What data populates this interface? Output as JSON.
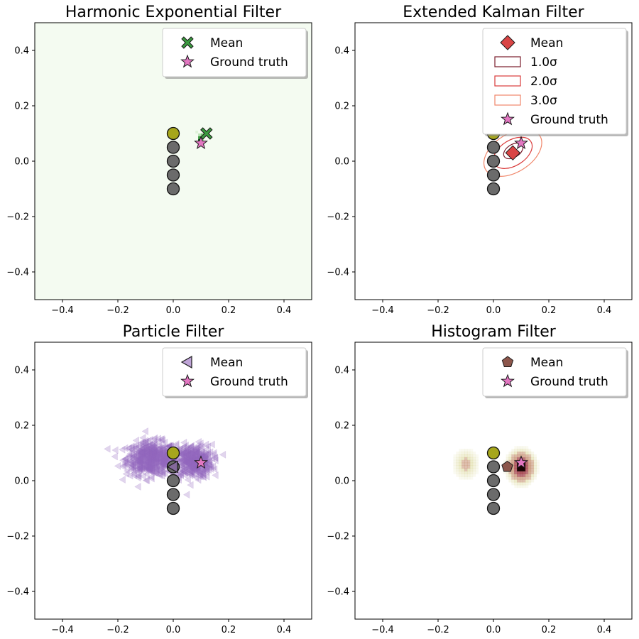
{
  "chart_data": [
    {
      "type": "scatter",
      "title": "Harmonic Exponential Filter",
      "xlim": [
        -0.5,
        0.5
      ],
      "ylim": [
        -0.5,
        0.5
      ],
      "xticks": [
        "−0.4",
        "−0.2",
        "0.0",
        "0.2",
        "0.4"
      ],
      "yticks": [
        "−0.4",
        "−0.2",
        "0.0",
        "0.2",
        "0.4"
      ],
      "background_density": "heatmap (greens)",
      "landmarks": {
        "x": [
          0,
          0,
          0,
          0,
          0
        ],
        "y": [
          0.1,
          0.05,
          0.0,
          -0.05,
          -0.1
        ],
        "highlighted": [
          true,
          false,
          false,
          false,
          false
        ]
      },
      "mean": {
        "x": 0.12,
        "y": 0.1
      },
      "ground_truth": {
        "x": 0.1,
        "y": 0.065
      },
      "legend": {
        "position": "upper right",
        "entries": [
          "Mean",
          "Ground truth"
        ]
      },
      "accent_color": "#3a9a3f"
    },
    {
      "type": "scatter",
      "title": "Extended Kalman Filter",
      "xlim": [
        -0.5,
        0.5
      ],
      "ylim": [
        -0.5,
        0.5
      ],
      "xticks": [
        "−0.4",
        "−0.2",
        "0.0",
        "0.2",
        "0.4"
      ],
      "yticks": [
        "−0.4",
        "−0.2",
        "0.0",
        "0.2",
        "0.4"
      ],
      "landmarks": {
        "x": [
          0,
          0,
          0,
          0,
          0
        ],
        "y": [
          0.1,
          0.05,
          0.0,
          -0.05,
          -0.1
        ],
        "highlighted": [
          true,
          false,
          false,
          false,
          false
        ]
      },
      "mean": {
        "x": 0.07,
        "y": 0.03
      },
      "ground_truth": {
        "x": 0.1,
        "y": 0.065
      },
      "ellipses": [
        {
          "sigma": 1.0,
          "label": "1.0σ",
          "color": "#7a1d2c"
        },
        {
          "sigma": 2.0,
          "label": "2.0σ",
          "color": "#d93b3b"
        },
        {
          "sigma": 3.0,
          "label": "3.0σ",
          "color": "#f0866a"
        }
      ],
      "legend": {
        "position": "upper right",
        "entries": [
          "Mean",
          "1.0σ",
          "2.0σ",
          "3.0σ",
          "Ground truth"
        ]
      },
      "accent_color": "#d94545"
    },
    {
      "type": "scatter",
      "title": "Particle Filter",
      "xlim": [
        -0.5,
        0.5
      ],
      "ylim": [
        -0.5,
        0.5
      ],
      "xticks": [
        "−0.4",
        "−0.2",
        "0.0",
        "0.2",
        "0.4"
      ],
      "yticks": [
        "−0.4",
        "−0.2",
        "0.0",
        "0.2",
        "0.4"
      ],
      "particles": "cloud centered near (0, 0.07), x range ≈ −0.2 to 0.17, y range ≈ −0.03 to 0.18",
      "landmarks": {
        "x": [
          0,
          0,
          0,
          0,
          0
        ],
        "y": [
          0.1,
          0.05,
          0.0,
          -0.05,
          -0.1
        ],
        "highlighted": [
          true,
          false,
          false,
          false,
          false
        ]
      },
      "mean": {
        "x": 0.0,
        "y": 0.05
      },
      "ground_truth": {
        "x": 0.1,
        "y": 0.065
      },
      "legend": {
        "position": "upper right",
        "entries": [
          "Mean",
          "Ground truth"
        ]
      },
      "accent_color": "#9467bd"
    },
    {
      "type": "scatter",
      "title": "Histogram Filter",
      "xlim": [
        -0.5,
        0.5
      ],
      "ylim": [
        -0.5,
        0.5
      ],
      "xticks": [
        "−0.4",
        "−0.2",
        "0.0",
        "0.2",
        "0.4"
      ],
      "yticks": [
        "−0.4",
        "−0.2",
        "0.0",
        "0.2",
        "0.4"
      ],
      "density_blobs": [
        {
          "x": -0.1,
          "y": 0.06,
          "peak": 0.25
        },
        {
          "x": 0.1,
          "y": 0.05,
          "peak": 1.0
        }
      ],
      "landmarks": {
        "x": [
          0,
          0,
          0,
          0,
          0
        ],
        "y": [
          0.1,
          0.05,
          0.0,
          -0.05,
          -0.1
        ],
        "highlighted": [
          true,
          false,
          false,
          false,
          false
        ]
      },
      "mean": {
        "x": 0.05,
        "y": 0.05
      },
      "ground_truth": {
        "x": 0.1,
        "y": 0.065
      },
      "legend": {
        "position": "upper right",
        "entries": [
          "Mean",
          "Ground truth"
        ]
      },
      "accent_color": "#8c564b"
    }
  ]
}
